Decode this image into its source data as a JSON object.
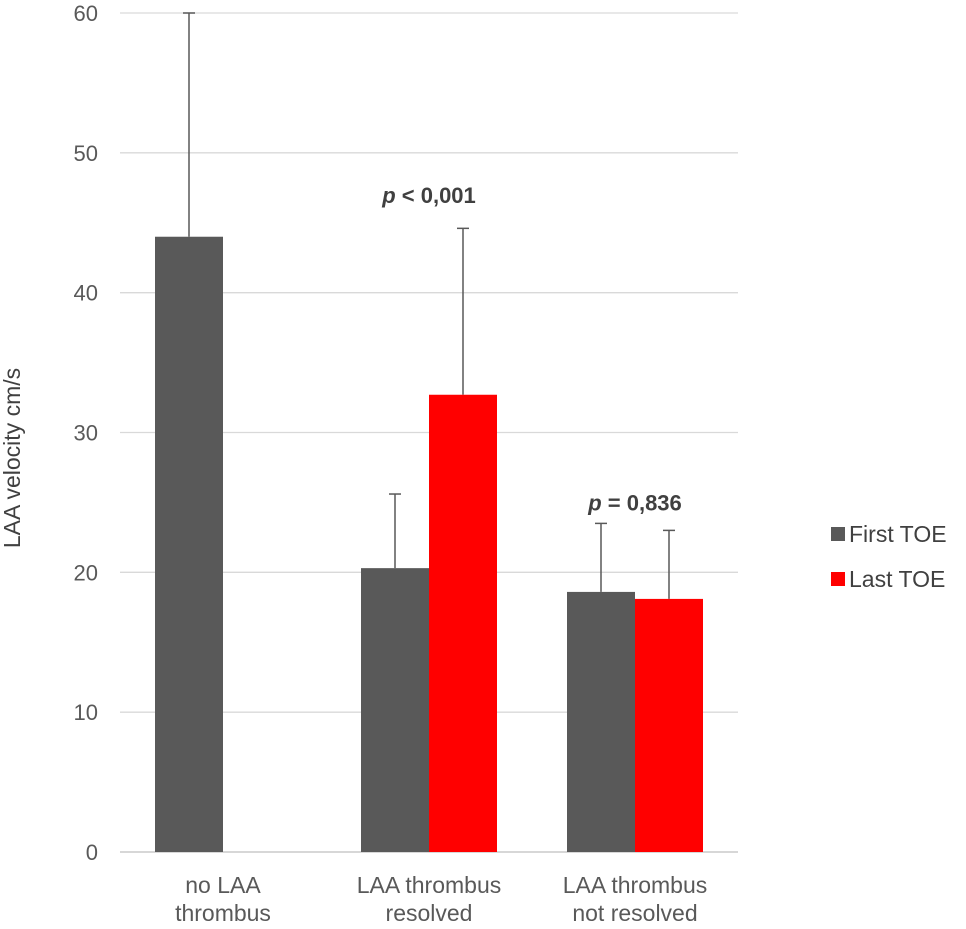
{
  "chart_data": {
    "type": "bar",
    "title": "",
    "xlabel": "",
    "ylabel": "LAA velocity cm/s",
    "ylim": [
      0,
      60
    ],
    "yticks": [
      0,
      10,
      20,
      30,
      40,
      50,
      60
    ],
    "categories": [
      [
        "no LAA",
        "thrombus"
      ],
      [
        "LAA thrombus",
        "resolved"
      ],
      [
        "LAA thrombus",
        "not resolved"
      ]
    ],
    "series": [
      {
        "name": "First TOE",
        "color": "#595959",
        "values": [
          44,
          20.3,
          18.6
        ],
        "error_upper": [
          60,
          25.6,
          23.5
        ]
      },
      {
        "name": "Last TOE",
        "color": "#ff0000",
        "values": [
          null,
          32.7,
          18.1
        ],
        "error_upper": [
          null,
          44.6,
          23.0
        ]
      }
    ],
    "annotations": [
      {
        "category_index": 1,
        "p_label": "p",
        "text": " < 0,001",
        "y": 47
      },
      {
        "category_index": 2,
        "p_label": "p",
        "text": " = 0,836",
        "y": 25
      }
    ],
    "grid": true,
    "legend": "right"
  }
}
